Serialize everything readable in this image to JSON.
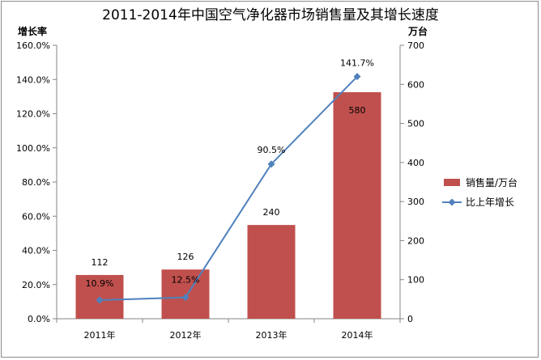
{
  "chart_data": {
    "type": "bar+line",
    "title": "2011-2014年中国空气净化器市场销售量及其增长速度",
    "left_axis_unit": "增长率",
    "right_axis_unit": "万台",
    "categories": [
      "2011年",
      "2012年",
      "2013年",
      "2014年"
    ],
    "series": [
      {
        "name": "销售量/万台",
        "kind": "bar",
        "axis": "right",
        "color": "#c0504d",
        "values": [
          112,
          126,
          240,
          580
        ],
        "labels": [
          "112",
          "126",
          "240",
          "580"
        ]
      },
      {
        "name": "比上年增长",
        "kind": "line",
        "axis": "left",
        "color": "#4f81bd",
        "values": [
          10.9,
          12.5,
          90.5,
          141.7
        ],
        "labels": [
          "10.9%",
          "12.5%",
          "90.5%",
          "141.7%"
        ]
      }
    ],
    "left_ylim": [
      0,
      160
    ],
    "left_ticks": [
      "0.0%",
      "20.0%",
      "40.0%",
      "60.0%",
      "80.0%",
      "100.0%",
      "120.0%",
      "140.0%",
      "160.0%"
    ],
    "right_ylim": [
      0,
      700
    ],
    "right_ticks": [
      "0",
      "100",
      "200",
      "300",
      "400",
      "500",
      "600",
      "700"
    ],
    "grid": false,
    "legend_position": "right"
  }
}
